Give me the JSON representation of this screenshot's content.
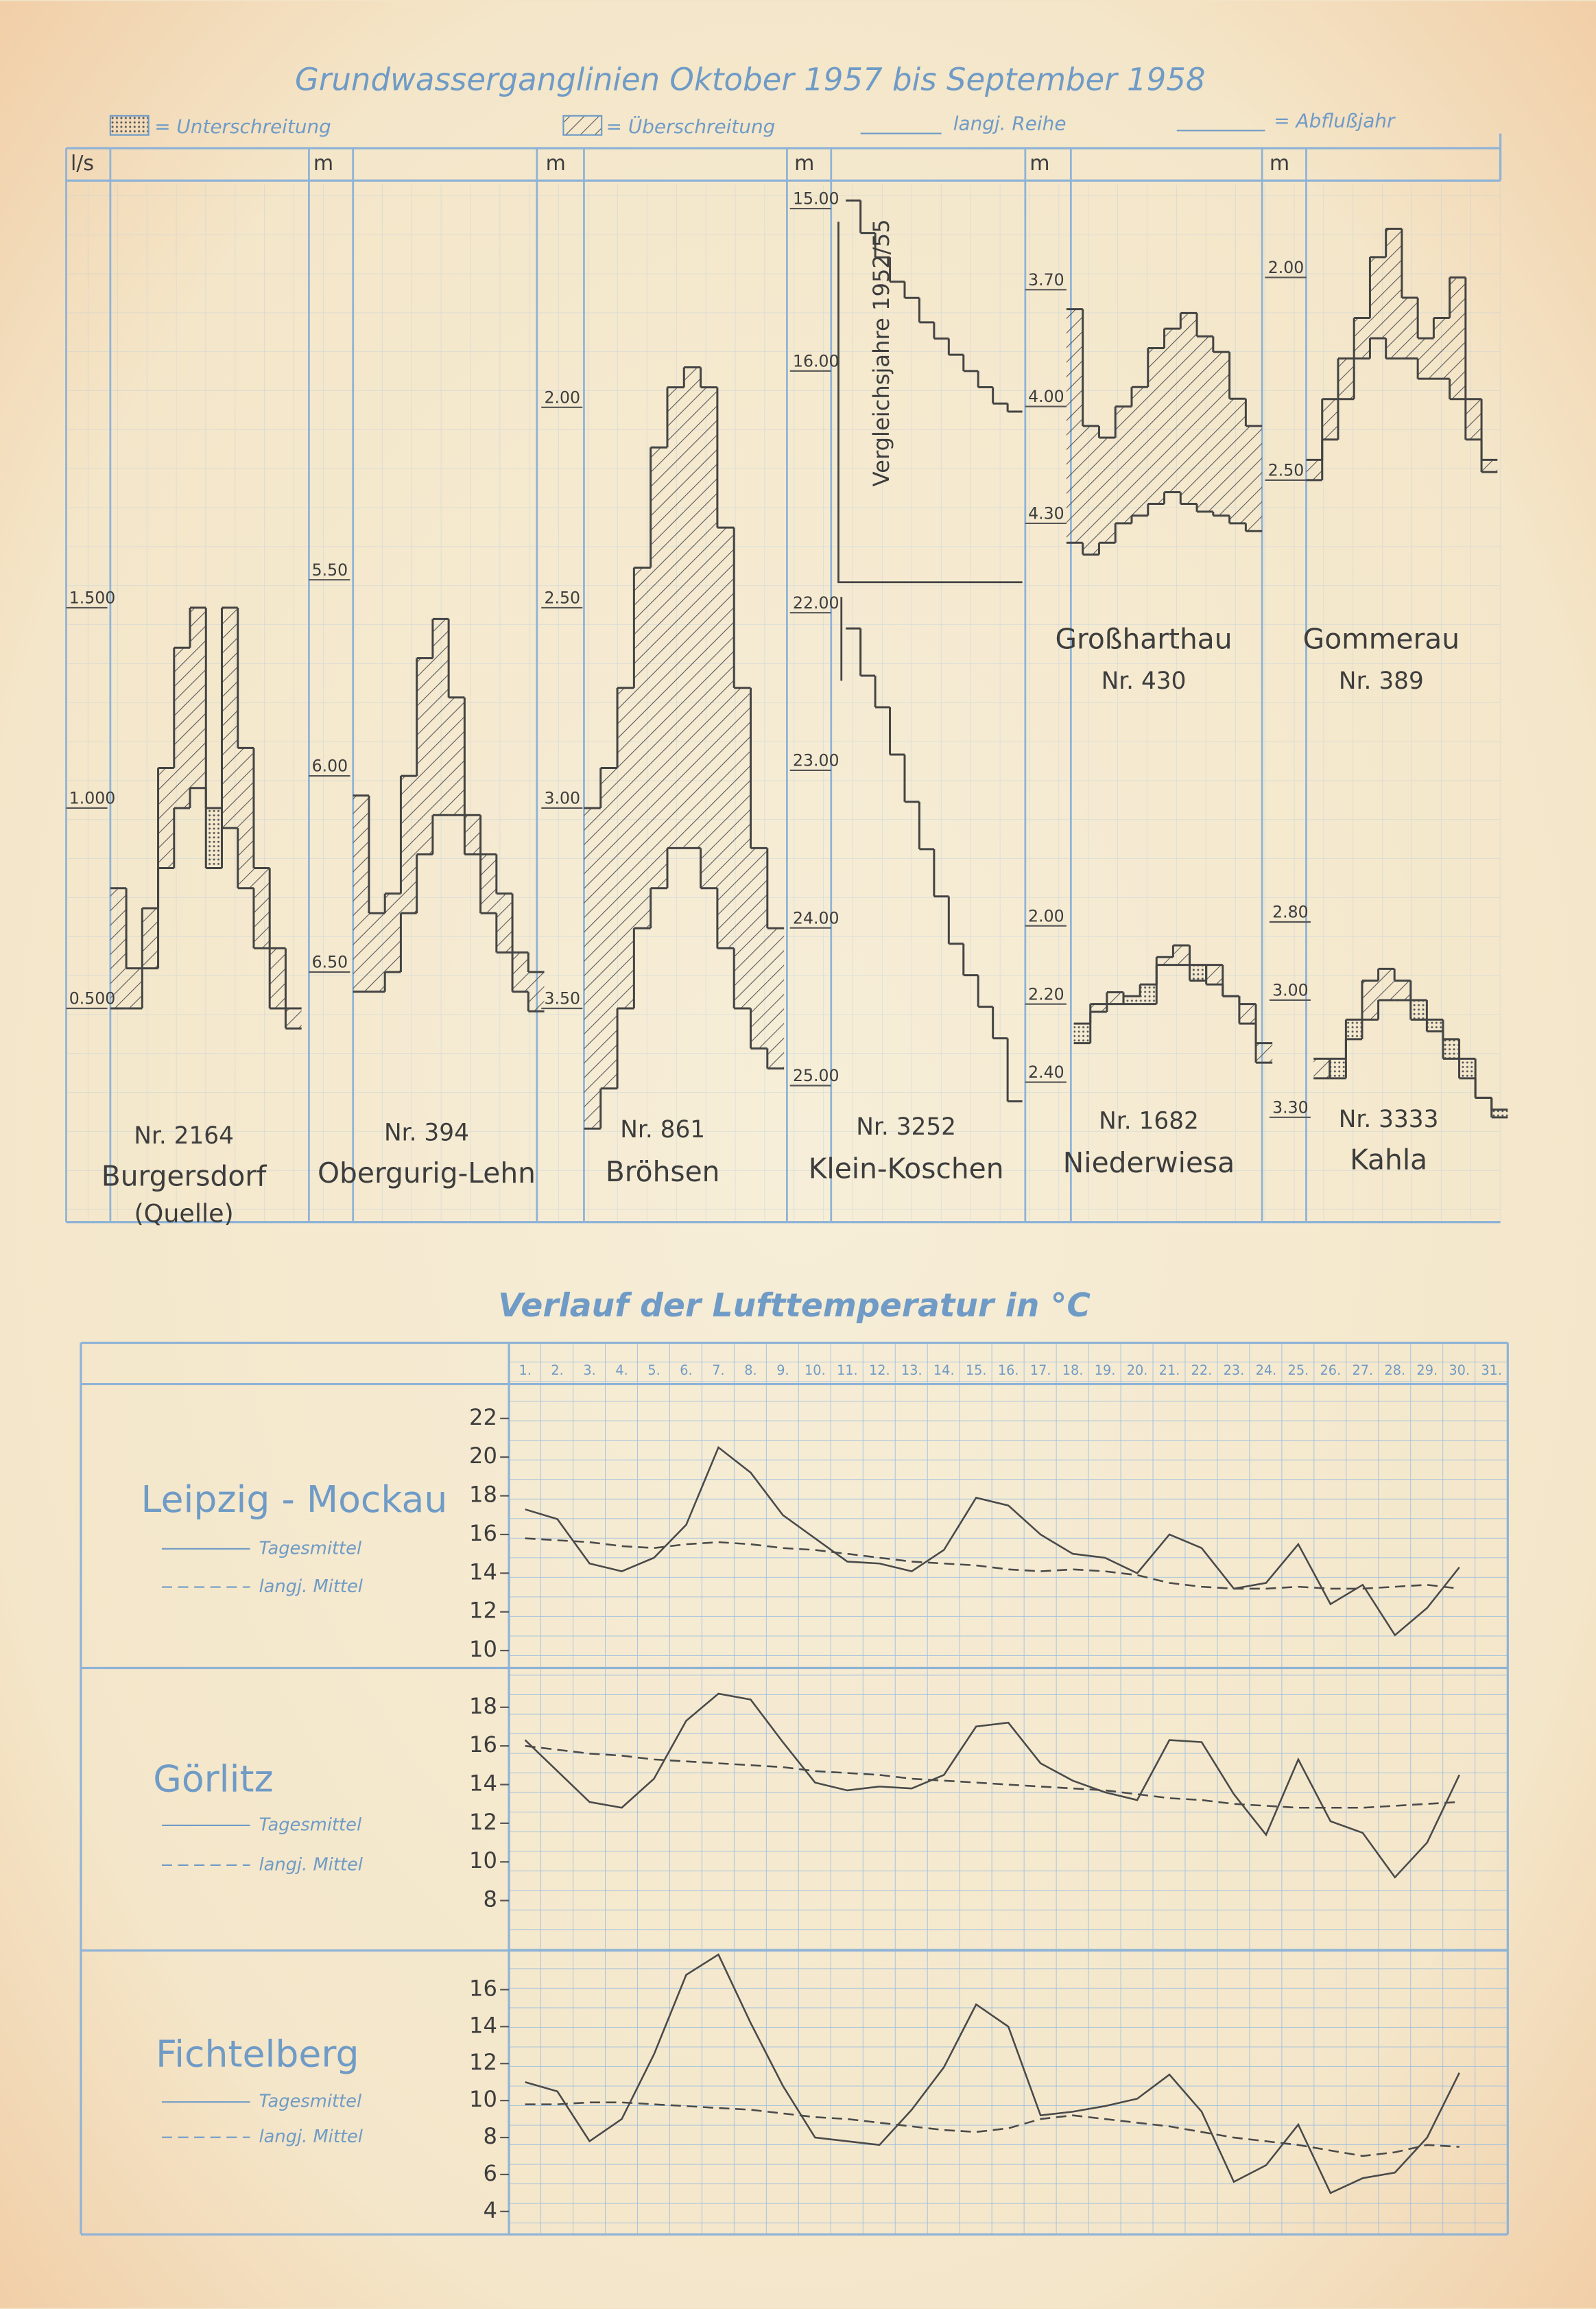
{
  "title": "Grundwasserganglinien Oktober 1957 bis September 1958",
  "legend": {
    "below": "= Unterschreitung",
    "above": "= Überschreitung",
    "mean": "langj. Reihe",
    "year": "= Abflußjahr"
  },
  "temperature_title": "Verlauf der Lufttemperatur in °C",
  "chart_data": [
    {
      "type": "step",
      "unit": "l/s",
      "number": "Nr. 2164",
      "name": "Burgersdorf",
      "note": "(Quelle)",
      "inverted": false,
      "ylim": [
        0.15,
        2.5
      ],
      "yticks": [
        {
          "value": 1.5,
          "label": "1.500"
        },
        {
          "value": 1,
          "label": "1.000"
        },
        {
          "value": 0.5,
          "label": "0.500"
        }
      ],
      "values": [
        0.8,
        0.6,
        0.75,
        1.1,
        1.4,
        1.5,
        0.85,
        1.5,
        1.15,
        0.85,
        0.65,
        0.5
      ],
      "mean": [
        0.5,
        0.5,
        0.6,
        0.85,
        1.0,
        1.05,
        1.0,
        0.95,
        0.8,
        0.65,
        0.5,
        0.45
      ]
    },
    {
      "type": "step",
      "unit": "m",
      "number": "Nr. 394",
      "name": "Obergurig-Lehn",
      "inverted": true,
      "ylim": [
        4.55,
        6.95
      ],
      "yticks": [
        {
          "value": 5.5,
          "label": "5.50"
        },
        {
          "value": 6,
          "label": "6.00"
        },
        {
          "value": 6.5,
          "label": "6.50"
        }
      ],
      "values": [
        6.05,
        6.35,
        6.3,
        6.0,
        5.7,
        5.6,
        5.8,
        6.1,
        6.2,
        6.3,
        6.45,
        6.5
      ],
      "mean": [
        6.55,
        6.55,
        6.5,
        6.35,
        6.2,
        6.1,
        6.1,
        6.2,
        6.35,
        6.45,
        6.55,
        6.6
      ]
    },
    {
      "type": "step",
      "unit": "m",
      "number": "Nr. 861",
      "name": "Bröhsen",
      "inverted": true,
      "ylim": [
        1.5,
        3.85
      ],
      "yticks": [
        {
          "value": 2,
          "label": "2.00"
        },
        {
          "value": 2.5,
          "label": "2.50"
        },
        {
          "value": 3,
          "label": "3.00"
        },
        {
          "value": 3.5,
          "label": "3.50"
        }
      ],
      "values": [
        3.0,
        2.9,
        2.7,
        2.4,
        2.1,
        1.95,
        1.9,
        1.95,
        2.3,
        2.7,
        3.1,
        3.3
      ],
      "mean": [
        3.8,
        3.7,
        3.5,
        3.3,
        3.2,
        3.1,
        3.1,
        3.2,
        3.35,
        3.5,
        3.6,
        3.65
      ]
    },
    {
      "type": "step",
      "unit": "m",
      "annotation": "Vergleichsjahre 1952/55",
      "inverted": true,
      "ylim": [
        14.9,
        17.3
      ],
      "yticks": [
        {
          "value": 15,
          "label": "15.00"
        },
        {
          "value": 16,
          "label": "16.00"
        }
      ],
      "values": [
        14.95,
        15.15,
        15.3,
        15.45,
        15.55,
        15.7,
        15.8,
        15.9,
        16.0,
        16.1,
        16.2,
        16.25
      ]
    },
    {
      "type": "step",
      "number": "Nr. 3252",
      "name": "Klein-Koschen",
      "inverted": true,
      "ylim": [
        21.9,
        25.4
      ],
      "yticks": [
        {
          "value": 22,
          "label": "22.00"
        },
        {
          "value": 23,
          "label": "23.00"
        },
        {
          "value": 24,
          "label": "24.00"
        },
        {
          "value": 25,
          "label": "25.00"
        }
      ],
      "values": [
        22.1,
        22.4,
        22.6,
        22.9,
        23.2,
        23.5,
        23.8,
        24.1,
        24.3,
        24.5,
        24.7,
        25.1
      ]
    },
    {
      "type": "step",
      "unit": "m",
      "number": "Nr. 430",
      "name": "Großharthau",
      "inverted": true,
      "ylim": [
        3.45,
        4.47
      ],
      "yticks": [
        {
          "value": 3.7,
          "label": "3.70"
        },
        {
          "value": 4,
          "label": "4.00"
        },
        {
          "value": 4.3,
          "label": "4.30"
        }
      ],
      "values": [
        3.75,
        4.05,
        4.08,
        4.0,
        3.95,
        3.85,
        3.8,
        3.76,
        3.82,
        3.86,
        3.98,
        4.05
      ],
      "mean": [
        4.35,
        4.38,
        4.35,
        4.3,
        4.28,
        4.25,
        4.22,
        4.25,
        4.27,
        4.28,
        4.3,
        4.32
      ]
    },
    {
      "type": "step",
      "number": "Nr. 1682",
      "name": "Niederwiesa",
      "inverted": true,
      "ylim": [
        1.93,
        2.57
      ],
      "yticks": [
        {
          "value": 2,
          "label": "2.00"
        },
        {
          "value": 2.2,
          "label": "2.20"
        },
        {
          "value": 2.4,
          "label": "2.40"
        }
      ],
      "values": [
        2.3,
        2.2,
        2.17,
        2.2,
        2.2,
        2.08,
        2.05,
        2.14,
        2.1,
        2.18,
        2.2,
        2.3
      ],
      "mean": [
        2.25,
        2.22,
        2.2,
        2.18,
        2.15,
        2.1,
        2.1,
        2.1,
        2.15,
        2.18,
        2.25,
        2.35
      ]
    },
    {
      "type": "step",
      "unit": "m",
      "number": "Nr. 389",
      "name": "Gommerau",
      "inverted": true,
      "ylim": [
        1.79,
        2.77
      ],
      "yticks": [
        {
          "value": 2,
          "label": "2.00"
        },
        {
          "value": 2.5,
          "label": "2.50"
        }
      ],
      "values": [
        2.45,
        2.3,
        2.2,
        2.1,
        1.95,
        1.88,
        2.05,
        2.15,
        2.1,
        2.0,
        2.3,
        2.45
      ],
      "mean": [
        2.5,
        2.4,
        2.3,
        2.2,
        2.15,
        2.2,
        2.2,
        2.25,
        2.25,
        2.3,
        2.4,
        2.48
      ]
    },
    {
      "type": "step",
      "number": "Nr. 3333",
      "name": "Kahla",
      "inverted": true,
      "ylim": [
        2.74,
        3.38
      ],
      "yticks": [
        {
          "value": 2.8,
          "label": "2.80"
        },
        {
          "value": 3,
          "label": "3.00"
        },
        {
          "value": 3.3,
          "label": "3.30"
        }
      ],
      "values": [
        3.15,
        3.2,
        3.1,
        2.95,
        2.92,
        2.95,
        3.05,
        3.08,
        3.15,
        3.2,
        3.25,
        3.3
      ],
      "mean": [
        3.2,
        3.15,
        3.05,
        3.05,
        3.0,
        3.0,
        3.0,
        3.05,
        3.1,
        3.15,
        3.25,
        3.28
      ]
    },
    {
      "type": "line",
      "title": "Leipzig - Mockau",
      "categories": [
        "1.",
        "2.",
        "3.",
        "4.",
        "5.",
        "6.",
        "7.",
        "8.",
        "9.",
        "10.",
        "11.",
        "12.",
        "13.",
        "14.",
        "15.",
        "16.",
        "17.",
        "18.",
        "19.",
        "20.",
        "21.",
        "22.",
        "23.",
        "24.",
        "25.",
        "26.",
        "27.",
        "28.",
        "29.",
        "30.",
        "31."
      ],
      "ylim": [
        9.1,
        23.4
      ],
      "yticks": [
        10,
        12,
        14,
        16,
        18,
        20,
        22
      ],
      "series": [
        {
          "name": "Tagesmittel",
          "color": "#4a4a4a",
          "dash": false,
          "values": [
            17.3,
            16.8,
            14.5,
            14.1,
            14.8,
            16.5,
            20.5,
            19.2,
            17,
            15.8,
            14.6,
            14.5,
            14.1,
            15.2,
            17.9,
            17.5,
            16,
            15,
            14.8,
            14,
            16,
            15.3,
            13.2,
            13.5,
            15.5,
            12.4,
            13.4,
            10.8,
            12.2,
            14.3,
            null
          ]
        },
        {
          "name": "langj. Mittel",
          "color": "#4a4a4a",
          "dash": true,
          "values": [
            15.8,
            15.7,
            15.6,
            15.4,
            15.3,
            15.5,
            15.6,
            15.5,
            15.3,
            15.2,
            15,
            14.8,
            14.6,
            14.5,
            14.4,
            14.2,
            14.1,
            14.2,
            14.1,
            13.9,
            13.5,
            13.3,
            13.2,
            13.2,
            13.3,
            13.2,
            13.2,
            13.3,
            13.4,
            13.2,
            null
          ]
        }
      ]
    },
    {
      "type": "line",
      "title": "Görlitz",
      "ylim": [
        5.8,
        19.5
      ],
      "yticks": [
        8,
        10,
        12,
        14,
        16,
        18
      ],
      "series": [
        {
          "name": "Tagesmittel",
          "color": "#4a4a4a",
          "dash": false,
          "values": [
            16.3,
            14.7,
            13.1,
            12.8,
            14.3,
            17.3,
            18.7,
            18.4,
            16.2,
            14.1,
            13.7,
            13.9,
            13.8,
            14.5,
            17,
            17.2,
            15.1,
            14.2,
            13.6,
            13.2,
            16.3,
            16.2,
            13.5,
            11.4,
            15.3,
            12.1,
            11.5,
            9.2,
            11,
            14.5,
            null
          ]
        },
        {
          "name": "langj. Mittel",
          "color": "#4a4a4a",
          "dash": true,
          "values": [
            16,
            15.8,
            15.6,
            15.5,
            15.3,
            15.2,
            15.1,
            15,
            14.9,
            14.7,
            14.6,
            14.5,
            14.3,
            14.2,
            14.1,
            14,
            13.9,
            13.8,
            13.7,
            13.5,
            13.3,
            13.2,
            13,
            12.9,
            12.8,
            12.8,
            12.8,
            12.9,
            13,
            13.1,
            null
          ]
        }
      ]
    },
    {
      "type": "line",
      "title": "Fichtelberg",
      "ylim": [
        3,
        18.2
      ],
      "yticks": [
        4,
        6,
        8,
        10,
        12,
        14,
        16
      ],
      "series": [
        {
          "name": "Tagesmittel",
          "color": "#4a4a4a",
          "dash": false,
          "values": [
            11,
            10.5,
            7.8,
            9,
            12.5,
            16.8,
            17.9,
            14.2,
            10.8,
            8,
            7.8,
            7.6,
            9.5,
            11.8,
            15.2,
            14,
            9.2,
            9.4,
            9.7,
            10.1,
            11.4,
            9.4,
            5.6,
            6.5,
            8.7,
            5,
            5.8,
            6.1,
            8,
            11.5,
            null
          ]
        },
        {
          "name": "langj. Mittel",
          "color": "#4a4a4a",
          "dash": true,
          "values": [
            9.8,
            9.8,
            9.9,
            9.9,
            9.8,
            9.7,
            9.6,
            9.5,
            9.3,
            9.1,
            9,
            8.8,
            8.6,
            8.4,
            8.3,
            8.5,
            9,
            9.2,
            9,
            8.8,
            8.6,
            8.3,
            8,
            7.8,
            7.6,
            7.3,
            7,
            7.2,
            7.6,
            7.5,
            null
          ]
        }
      ]
    }
  ]
}
